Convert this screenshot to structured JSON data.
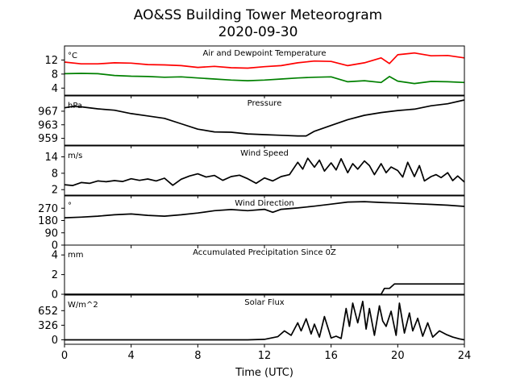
{
  "figure": {
    "title_line1": "AO&SS Building Tower Meteorogram",
    "title_line2": "2020-09-30",
    "xlabel": "Time (UTC)",
    "xticks": [
      0,
      4,
      8,
      12,
      16,
      20,
      24
    ],
    "xlim": [
      0,
      24
    ]
  },
  "colors": {
    "temperature": "#ff0000",
    "dewpoint": "#008000",
    "default": "#000000"
  },
  "chart_data": [
    {
      "type": "line",
      "title": "Air and Dewpoint Temperature",
      "unit": "°C",
      "ylim": [
        2,
        16
      ],
      "yticks": [
        4,
        8,
        12
      ],
      "series": [
        {
          "name": "temperature",
          "color": "#ff0000",
          "x": [
            0,
            1,
            2,
            3,
            4,
            5,
            6,
            7,
            8,
            9,
            10,
            11,
            12,
            13,
            14,
            15,
            16,
            17,
            18,
            19,
            19.5,
            20,
            21,
            22,
            23,
            24
          ],
          "y": [
            11.4,
            10.9,
            10.9,
            11.2,
            11.1,
            10.7,
            10.6,
            10.4,
            9.9,
            10.2,
            9.8,
            9.7,
            10.1,
            10.4,
            11.2,
            11.7,
            11.6,
            10.4,
            11.2,
            12.6,
            11.0,
            13.5,
            14.0,
            13.2,
            13.3,
            12.6
          ]
        },
        {
          "name": "dewpoint",
          "color": "#008000",
          "x": [
            0,
            1,
            2,
            3,
            4,
            5,
            6,
            7,
            8,
            9,
            10,
            11,
            12,
            13,
            14,
            15,
            16,
            17,
            18,
            19,
            19.5,
            20,
            21,
            22,
            23,
            24
          ],
          "y": [
            8.1,
            8.2,
            8.1,
            7.6,
            7.4,
            7.3,
            7.1,
            7.2,
            6.9,
            6.6,
            6.3,
            6.1,
            6.3,
            6.6,
            6.9,
            7.1,
            7.2,
            5.8,
            6.1,
            5.6,
            7.3,
            6.0,
            5.3,
            5.9,
            5.8,
            5.6
          ]
        }
      ]
    },
    {
      "type": "line",
      "title": "Pressure",
      "unit": "hPa",
      "ylim": [
        957,
        971.5
      ],
      "yticks": [
        959,
        963,
        967
      ],
      "series": [
        {
          "color": "#000000",
          "x": [
            0,
            0.5,
            1,
            2,
            3,
            4,
            5,
            6,
            7,
            8,
            9,
            10,
            11,
            12,
            13,
            14,
            14.5,
            15,
            16,
            17,
            18,
            19,
            20,
            21,
            22,
            23,
            24
          ],
          "y": [
            968.0,
            968.4,
            968.3,
            967.7,
            967.3,
            966.3,
            965.6,
            964.9,
            963.3,
            961.7,
            960.9,
            960.8,
            960.3,
            960.1,
            959.9,
            959.7,
            959.7,
            961.1,
            962.8,
            964.5,
            965.8,
            966.6,
            967.2,
            967.6,
            968.6,
            969.2,
            970.3
          ]
        }
      ]
    },
    {
      "type": "line",
      "title": "Wind Speed",
      "unit": "m/s",
      "ylim": [
        0,
        18
      ],
      "yticks": [
        2,
        8,
        14
      ],
      "series": [
        {
          "color": "#000000",
          "x": [
            0,
            0.5,
            1,
            1.5,
            2,
            2.5,
            3,
            3.5,
            4,
            4.5,
            5,
            5.5,
            6,
            6.5,
            7,
            7.5,
            8,
            8.5,
            9,
            9.5,
            10,
            10.5,
            11,
            11.5,
            12,
            12.5,
            13,
            13.5,
            14,
            14.3,
            14.6,
            15,
            15.3,
            15.6,
            16,
            16.3,
            16.6,
            17,
            17.3,
            17.6,
            18,
            18.3,
            18.6,
            19,
            19.3,
            19.6,
            20,
            20.3,
            20.6,
            21,
            21.3,
            21.6,
            22,
            22.3,
            22.6,
            23,
            23.3,
            23.6,
            24
          ],
          "y": [
            3.8,
            3.5,
            4.6,
            4.3,
            5.2,
            4.9,
            5.3,
            5.0,
            6.0,
            5.4,
            5.9,
            5.2,
            6.2,
            3.6,
            5.8,
            7.0,
            7.8,
            6.6,
            7.2,
            5.4,
            6.8,
            7.3,
            6.0,
            4.3,
            6.3,
            5.2,
            6.8,
            7.5,
            12.0,
            9.5,
            13.5,
            10.2,
            12.8,
            8.8,
            11.8,
            9.2,
            13.3,
            8.2,
            11.5,
            9.5,
            12.5,
            10.8,
            7.5,
            11.5,
            8.2,
            10.3,
            9.0,
            6.6,
            12.0,
            6.8,
            10.8,
            5.2,
            6.8,
            7.5,
            6.4,
            8.2,
            5.3,
            7.0,
            4.8
          ]
        }
      ]
    },
    {
      "type": "line",
      "title": "Wind Direction",
      "unit": "°",
      "ylim": [
        0,
        360
      ],
      "yticks": [
        0,
        90,
        180,
        270
      ],
      "series": [
        {
          "color": "#000000",
          "x": [
            0,
            1,
            2,
            3,
            4,
            5,
            6,
            7,
            8,
            9,
            10,
            11,
            12,
            12.5,
            13,
            14,
            15,
            16,
            17,
            18,
            19,
            20,
            21,
            22,
            23,
            24
          ],
          "y": [
            200,
            205,
            212,
            222,
            228,
            218,
            212,
            222,
            235,
            252,
            260,
            252,
            262,
            240,
            262,
            272,
            285,
            300,
            315,
            318,
            312,
            308,
            303,
            298,
            292,
            283
          ]
        }
      ]
    },
    {
      "type": "line",
      "title": "Accumulated Precipitation Since 0Z",
      "unit": "mm",
      "ylim": [
        0,
        5
      ],
      "yticks": [
        0,
        2,
        4
      ],
      "series": [
        {
          "color": "#000000",
          "x": [
            0,
            19.0,
            19.2,
            19.5,
            19.8,
            24
          ],
          "y": [
            0,
            0,
            0.6,
            0.6,
            1.05,
            1.05
          ]
        }
      ]
    },
    {
      "type": "line",
      "title": "Solar Flux",
      "unit": "W/m^2",
      "ylim": [
        -100,
        1000
      ],
      "yticks": [
        0,
        326,
        652
      ],
      "series": [
        {
          "color": "#000000",
          "x": [
            0,
            11,
            12,
            12.8,
            13.2,
            13.6,
            14,
            14.2,
            14.5,
            14.8,
            15.0,
            15.3,
            15.6,
            16.0,
            16.3,
            16.6,
            16.9,
            17.1,
            17.3,
            17.6,
            17.9,
            18.1,
            18.3,
            18.6,
            18.9,
            19.1,
            19.3,
            19.6,
            19.9,
            20.1,
            20.4,
            20.7,
            20.9,
            21.2,
            21.5,
            21.8,
            22.1,
            22.5,
            22.9,
            23.3,
            23.7,
            24
          ],
          "y": [
            0,
            0,
            10,
            70,
            200,
            100,
            380,
            200,
            470,
            130,
            350,
            60,
            520,
            40,
            80,
            30,
            700,
            300,
            820,
            380,
            860,
            240,
            700,
            100,
            760,
            420,
            300,
            640,
            100,
            820,
            150,
            600,
            200,
            480,
            80,
            380,
            60,
            200,
            120,
            60,
            20,
            0
          ]
        }
      ]
    }
  ]
}
